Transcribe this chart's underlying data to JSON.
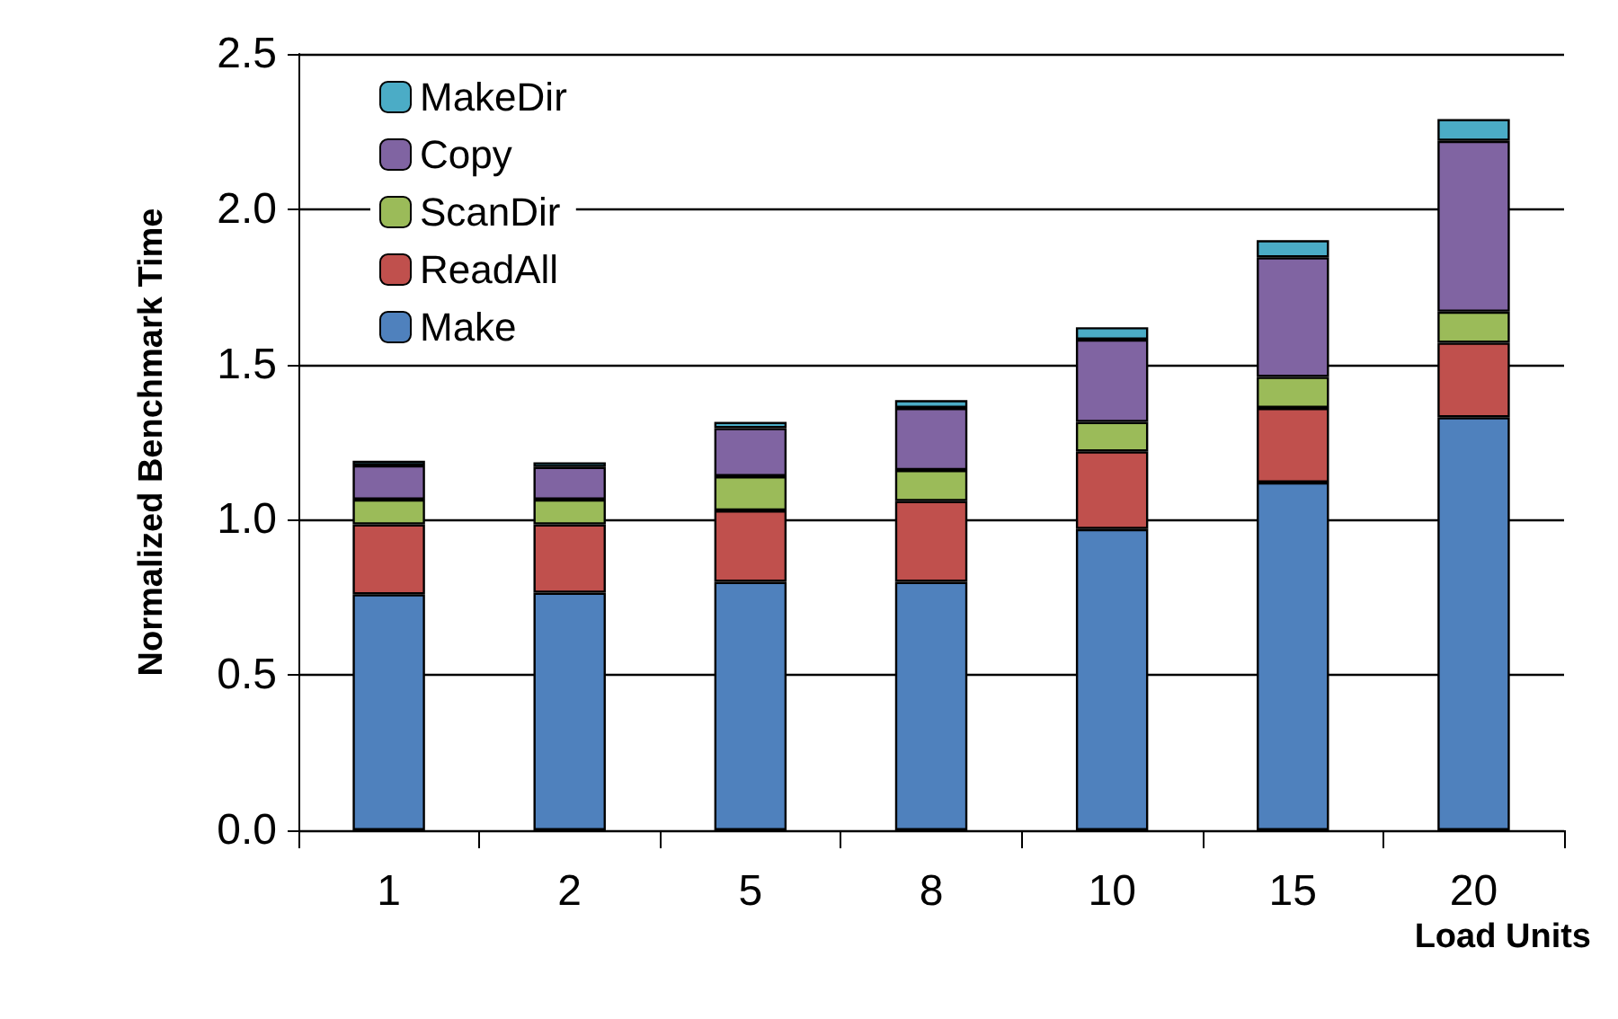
{
  "chart_data": {
    "type": "bar",
    "stacked": true,
    "xlabel": "Load Units",
    "ylabel": "Normalized Benchmark Time",
    "categories": [
      "1",
      "2",
      "5",
      "8",
      "10",
      "15",
      "20"
    ],
    "series": [
      {
        "name": "Make",
        "color": "#4f81bd",
        "values": [
          0.76,
          0.765,
          0.8,
          0.8,
          0.97,
          1.12,
          1.33
        ]
      },
      {
        "name": "ReadAll",
        "color": "#c0504d",
        "values": [
          0.225,
          0.22,
          0.23,
          0.26,
          0.25,
          0.24,
          0.24
        ]
      },
      {
        "name": "ScanDir",
        "color": "#9bbb59",
        "values": [
          0.08,
          0.08,
          0.11,
          0.1,
          0.095,
          0.1,
          0.1
        ]
      },
      {
        "name": "Copy",
        "color": "#8064a2",
        "values": [
          0.11,
          0.105,
          0.155,
          0.2,
          0.265,
          0.385,
          0.55
        ]
      },
      {
        "name": "MakeDir",
        "color": "#4bacc6",
        "values": [
          0.015,
          0.015,
          0.02,
          0.025,
          0.04,
          0.055,
          0.07
        ]
      }
    ],
    "ylim": [
      0,
      2.5
    ],
    "yticks": [
      {
        "value": 0,
        "label": "0.0"
      },
      0.5,
      {
        "value": 1,
        "label": "1.0"
      },
      1.5,
      {
        "value": 2,
        "label": "2.0"
      },
      2.5
    ],
    "grid": "y",
    "legend": "top left"
  }
}
